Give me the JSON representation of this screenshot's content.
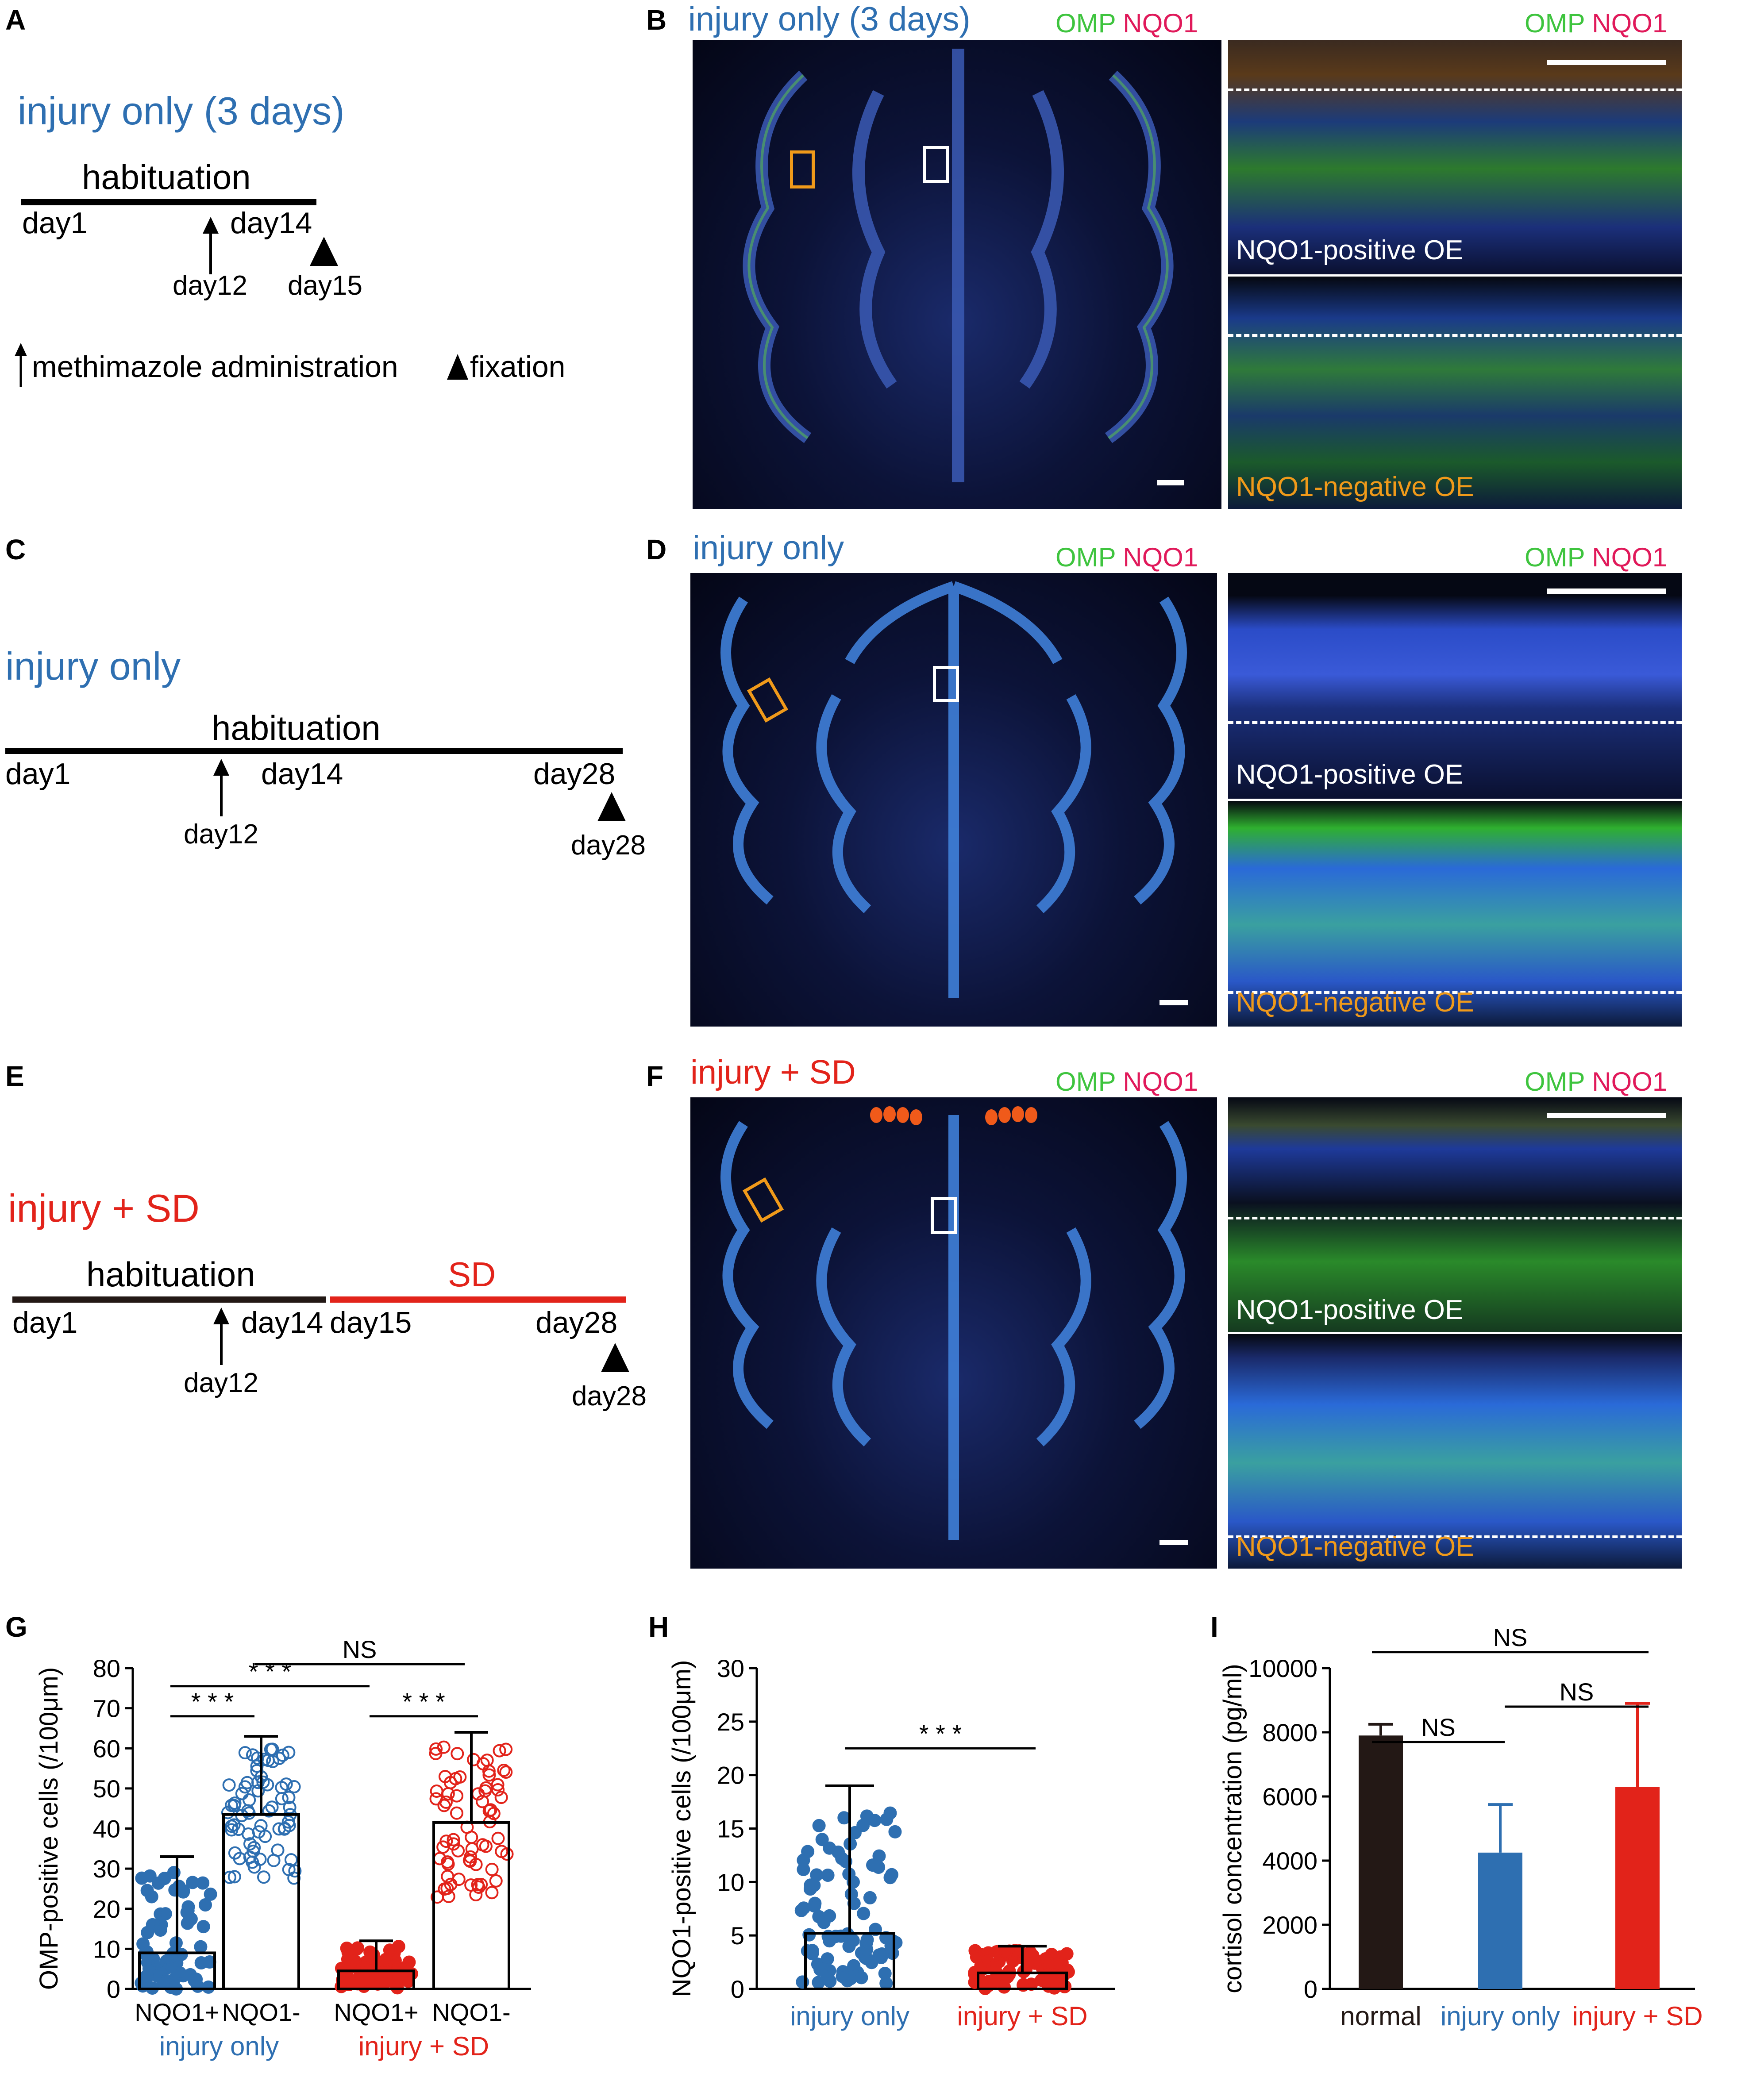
{
  "panels": {
    "A": {
      "letter": "A",
      "title": "injury only (3 days)",
      "habituation": "habituation",
      "day1": "day1",
      "day14": "day14",
      "day12": "day12",
      "day15": "day15",
      "legend_arrow": "methimazole administration",
      "legend_fixation": "fixation"
    },
    "B": {
      "letter": "B",
      "title": "injury only (3 days)",
      "stain_omp": "OMP",
      "stain_nqo1": "NQO1",
      "inset_pos": "NQO1-positive OE",
      "inset_neg": "NQO1-negative OE"
    },
    "C": {
      "letter": "C",
      "title": "injury only",
      "habituation": "habituation",
      "day1": "day1",
      "day14": "day14",
      "day28": "day28",
      "day12": "day12",
      "day28_fix": "day28"
    },
    "D": {
      "letter": "D",
      "title": "injury only",
      "stain_omp": "OMP",
      "stain_nqo1": "NQO1",
      "inset_pos": "NQO1-positive OE",
      "inset_neg": "NQO1-negative OE"
    },
    "E": {
      "letter": "E",
      "title": "injury + SD",
      "habituation": "habituation",
      "sd": "SD",
      "day1": "day1",
      "day14": "day14",
      "day15": "day15",
      "day28": "day28",
      "day12": "day12",
      "day28_fix": "day28"
    },
    "F": {
      "letter": "F",
      "title": "injury + SD",
      "stain_omp": "OMP",
      "stain_nqo1": "NQO1",
      "inset_pos": "NQO1-positive OE",
      "inset_neg": "NQO1-negative OE"
    }
  },
  "colors": {
    "injury_only": "#2e6fb1",
    "injury_sd": "#e2231a",
    "normal": "#231815",
    "omp": "#3ec43e",
    "nqo1": "#e0195a",
    "orange_box": "#f09a1a"
  },
  "chart_data": [
    {
      "panel": "G",
      "type": "bar",
      "ylabel": "OMP-positive cells (/100μm)",
      "ylim": [
        0,
        80
      ],
      "yticks": [
        0,
        10,
        20,
        30,
        40,
        50,
        60,
        70,
        80
      ],
      "categories": [
        "NQO1+",
        "NQO1-",
        "NQO1+",
        "NQO1-"
      ],
      "groups": [
        {
          "label": "injury only",
          "color": "#2e6fb1",
          "categories": [
            0,
            1
          ]
        },
        {
          "label": "injury + SD",
          "color": "#e2231a",
          "categories": [
            2,
            3
          ]
        }
      ],
      "values": [
        9,
        43.5,
        4.5,
        41.5
      ],
      "error_max": [
        33,
        63,
        12,
        64
      ],
      "point_style": [
        "filled-blue",
        "open-blue",
        "filled-red",
        "open-red"
      ],
      "significance": [
        {
          "from": 0,
          "to": 1,
          "label": "* * *"
        },
        {
          "from": 0,
          "to": 2,
          "label": "* * *"
        },
        {
          "from": 2,
          "to": 3,
          "label": "* * *"
        },
        {
          "from": 1,
          "to": 3,
          "label": "NS"
        }
      ]
    },
    {
      "panel": "H",
      "type": "bar",
      "ylabel": "NQO1-positive cells (/100μm)",
      "ylim": [
        0,
        30
      ],
      "yticks": [
        0,
        5,
        10,
        15,
        20,
        25,
        30
      ],
      "categories": [
        "injury only",
        "injury + SD"
      ],
      "category_colors": [
        "#2e6fb1",
        "#e2231a"
      ],
      "values": [
        5.2,
        1.5
      ],
      "error_max": [
        19,
        4
      ],
      "significance": [
        {
          "from": 0,
          "to": 1,
          "label": "* * *"
        }
      ]
    },
    {
      "panel": "I",
      "type": "bar",
      "ylabel": "cortisol concentration (pg/ml)",
      "ylim": [
        0,
        10000
      ],
      "yticks": [
        0,
        2000,
        4000,
        6000,
        8000,
        10000
      ],
      "categories": [
        "normal",
        "injury only",
        "injury + SD"
      ],
      "category_colors": [
        "#231815",
        "#2e6fb1",
        "#e2231a"
      ],
      "values": [
        7900,
        4250,
        6300
      ],
      "error_max": [
        8250,
        5750,
        8900
      ],
      "significance": [
        {
          "from": 0,
          "to": 1,
          "label": "NS"
        },
        {
          "from": 1,
          "to": 2,
          "label": "NS"
        },
        {
          "from": 0,
          "to": 2,
          "label": "NS"
        }
      ]
    }
  ]
}
